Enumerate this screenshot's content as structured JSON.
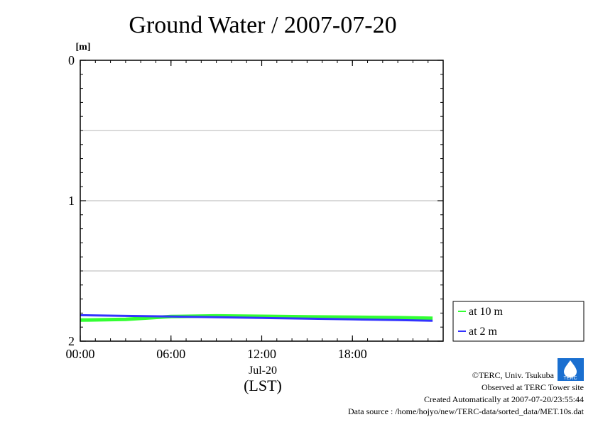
{
  "chart_data": {
    "type": "line",
    "title": "Ground Water / 2007-07-20",
    "ylabel_unit": "[m]",
    "y_reversed": true,
    "ylim": [
      0,
      2
    ],
    "yticks": [
      {
        "value": 0,
        "label": "0"
      },
      {
        "value": 1,
        "label": "1"
      },
      {
        "value": 2,
        "label": "2"
      }
    ],
    "ygrid": [
      0.5,
      1.0,
      1.5
    ],
    "xlim": [
      0,
      24
    ],
    "xticks": [
      {
        "value": 0,
        "label": "00:00"
      },
      {
        "value": 6,
        "label": "06:00"
      },
      {
        "value": 12,
        "label": "12:00"
      },
      {
        "value": 18,
        "label": "18:00"
      }
    ],
    "xdate_label": "Jul-20",
    "xaxis_label": "(LST)",
    "series": [
      {
        "name": "at 10 m",
        "color": "#33ff33",
        "x": [
          0,
          3,
          6,
          9,
          12,
          15,
          18,
          21,
          23.3
        ],
        "y": [
          1.85,
          1.845,
          1.825,
          1.82,
          1.823,
          1.827,
          1.83,
          1.833,
          1.837
        ]
      },
      {
        "name": "at 2 m",
        "color": "#3333ff",
        "x": [
          0,
          3,
          6,
          9,
          12,
          15,
          18,
          21,
          23.3
        ],
        "y": [
          1.815,
          1.82,
          1.825,
          1.83,
          1.835,
          1.84,
          1.845,
          1.85,
          1.855
        ]
      }
    ]
  },
  "footer": {
    "copyright": "©TERC, Univ. Tsukuba",
    "observed": "Observed at TERC Tower site",
    "created": "Created Automatically at 2007-07-20/23:55:44",
    "source": "Data source : /home/hojyo/new/TERC-data/sorted_data/MET.10s.dat",
    "logo_text": "TERC"
  }
}
